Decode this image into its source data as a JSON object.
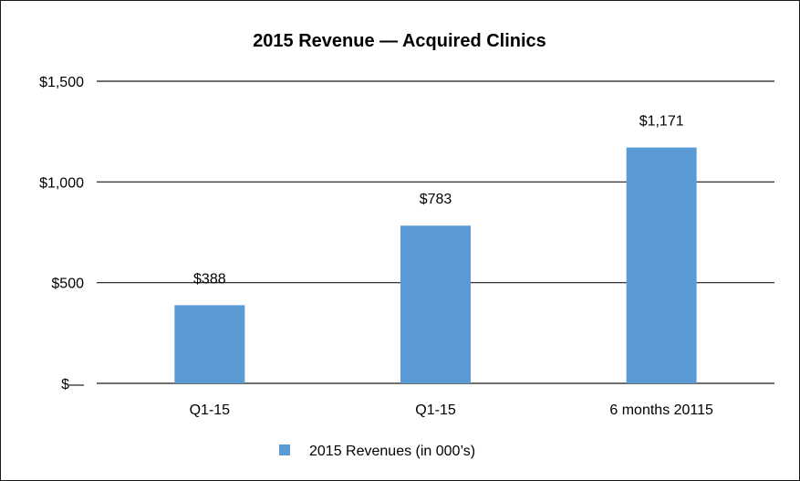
{
  "chart_data": {
    "type": "bar",
    "title": "2015 Revenue —  Acquired Clinics",
    "categories": [
      "Q1-15",
      "Q1-15",
      "6 months 20115"
    ],
    "series": [
      {
        "name": "2015 Revenues (in 000’s)",
        "values": [
          388,
          783,
          1171
        ]
      }
    ],
    "data_labels": [
      "$388",
      "$783",
      "$1,171"
    ],
    "yticks": [
      {
        "value": 0,
        "label": "$—"
      },
      {
        "value": 500,
        "label": "$500"
      },
      {
        "value": 1000,
        "label": "$1,000"
      },
      {
        "value": 1500,
        "label": "$1,500"
      }
    ],
    "ylim": [
      0,
      1500
    ],
    "grid": true,
    "legend_position": "bottom",
    "colors": {
      "bar": "#5b9bd5",
      "grid": "#1a1a1a"
    }
  }
}
